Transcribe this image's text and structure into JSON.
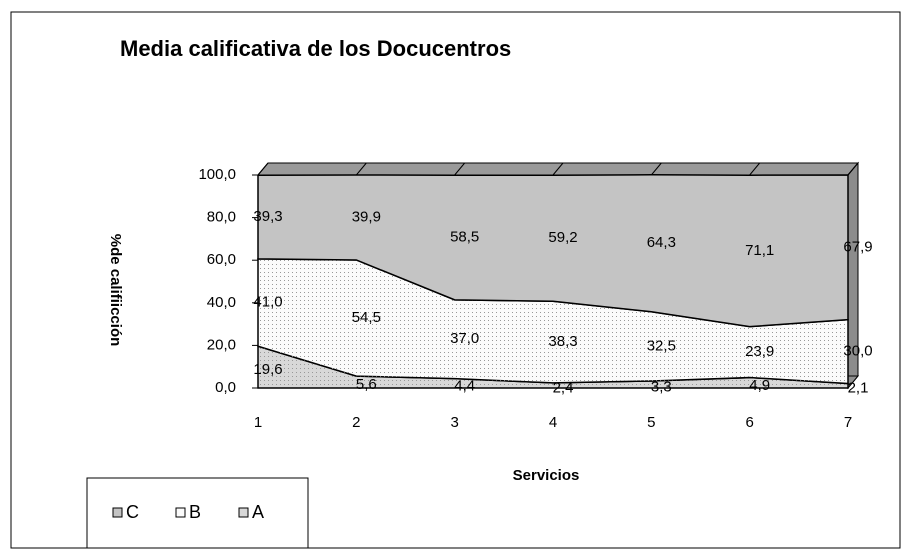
{
  "chart_data": {
    "type": "area",
    "stacked": true,
    "title": "Media calificativa de los Docucentros",
    "x_label": "Servicios",
    "y_label": "%de califiicción",
    "categories": [
      "1",
      "2",
      "3",
      "4",
      "5",
      "6",
      "7"
    ],
    "series": [
      {
        "name": "A",
        "color": "#d8d8d8",
        "values": [
          19.6,
          5.6,
          4.4,
          2.4,
          3.3,
          4.9,
          2.1
        ],
        "value_labels": [
          "19,6",
          "5,6",
          "4,4",
          "2,4",
          "3,3",
          "4,9",
          "2,1"
        ]
      },
      {
        "name": "B",
        "color": "#fbfbfb",
        "values": [
          41.0,
          54.5,
          37.0,
          38.3,
          32.5,
          23.9,
          30.0
        ],
        "value_labels": [
          "41,0",
          "54,5",
          "37,0",
          "38,3",
          "32,5",
          "23,9",
          "30,0"
        ]
      },
      {
        "name": "C",
        "color": "#c4c4c4",
        "values": [
          39.3,
          39.9,
          58.5,
          59.2,
          64.3,
          71.1,
          67.9
        ],
        "value_labels": [
          "39,3",
          "39,9",
          "58,5",
          "59,2",
          "64,3",
          "71,1",
          "67,9"
        ]
      }
    ],
    "ylim": [
      0,
      100
    ],
    "yticks": [
      {
        "value": 0,
        "label": "0,0"
      },
      {
        "value": 20,
        "label": "20,0"
      },
      {
        "value": 40,
        "label": "40,0"
      },
      {
        "value": 60,
        "label": "60,0"
      },
      {
        "value": 80,
        "label": "80,0"
      },
      {
        "value": 100,
        "label": "100,0"
      }
    ],
    "legend_order": [
      "C",
      "B",
      "A"
    ]
  }
}
